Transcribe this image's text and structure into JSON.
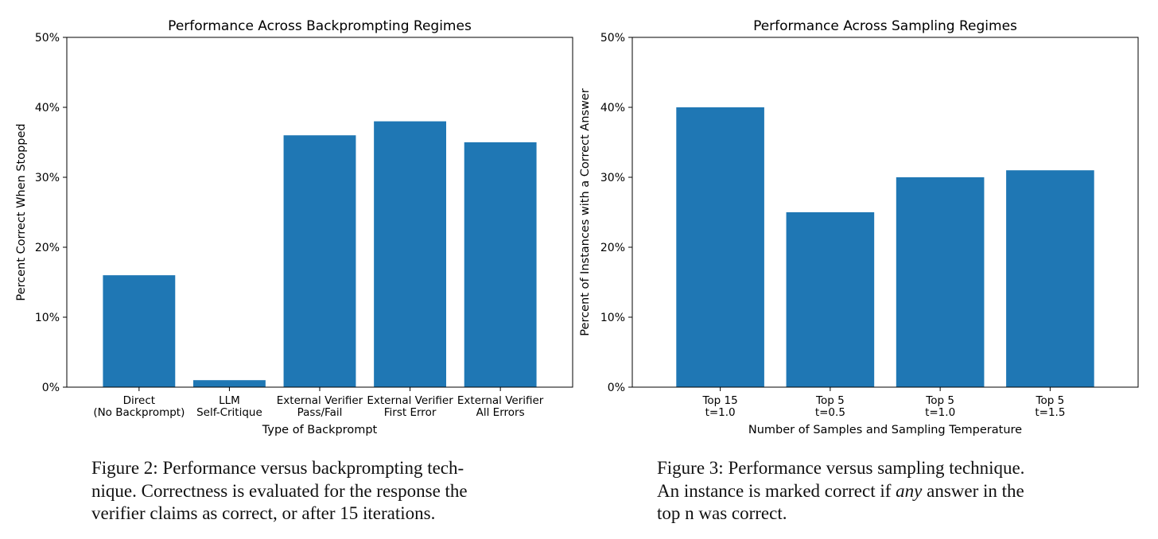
{
  "chart_data": [
    {
      "type": "bar",
      "title": "Performance Across Backprompting Regimes",
      "xlabel": "Type of Backprompt",
      "ylabel": "Percent Correct When Stopped",
      "categories": [
        [
          "Direct",
          "(No Backprompt)"
        ],
        [
          "LLM",
          "Self-Critique"
        ],
        [
          "External Verifier",
          "Pass/Fail"
        ],
        [
          "External Verifier",
          "First Error"
        ],
        [
          "External Verifier",
          "All Errors"
        ]
      ],
      "values": [
        16,
        1,
        36,
        38,
        35
      ],
      "ylim": [
        0,
        50
      ],
      "yticks": [
        0,
        10,
        20,
        30,
        40,
        50
      ],
      "ytick_labels": [
        "0%",
        "10%",
        "20%",
        "30%",
        "40%",
        "50%"
      ],
      "bar_color": "#1f77b4",
      "grid": false
    },
    {
      "type": "bar",
      "title": "Performance Across Sampling Regimes",
      "xlabel": "Number of Samples and Sampling Temperature",
      "ylabel": "Percent of Instances with a Correct Answer",
      "categories": [
        [
          "Top 15",
          "t=1.0"
        ],
        [
          "Top 5",
          "t=0.5"
        ],
        [
          "Top 5",
          "t=1.0"
        ],
        [
          "Top 5",
          "t=1.5"
        ]
      ],
      "values": [
        40,
        25,
        30,
        31
      ],
      "ylim": [
        0,
        50
      ],
      "yticks": [
        0,
        10,
        20,
        30,
        40,
        50
      ],
      "ytick_labels": [
        "0%",
        "10%",
        "20%",
        "30%",
        "40%",
        "50%"
      ],
      "bar_color": "#1f77b4",
      "grid": false
    }
  ],
  "captions": {
    "left": {
      "lines": [
        "Figure 2: Performance versus backprompting tech-",
        "nique. Correctness is evaluated for the response the",
        "verifier claims as correct, or after 15 iterations."
      ]
    },
    "right": {
      "line1": "Figure 3: Performance versus sampling technique.",
      "line2_before": "An instance is marked correct if ",
      "line2_emph": "any",
      "line2_after": " answer in the",
      "line3": "top n was correct."
    }
  }
}
